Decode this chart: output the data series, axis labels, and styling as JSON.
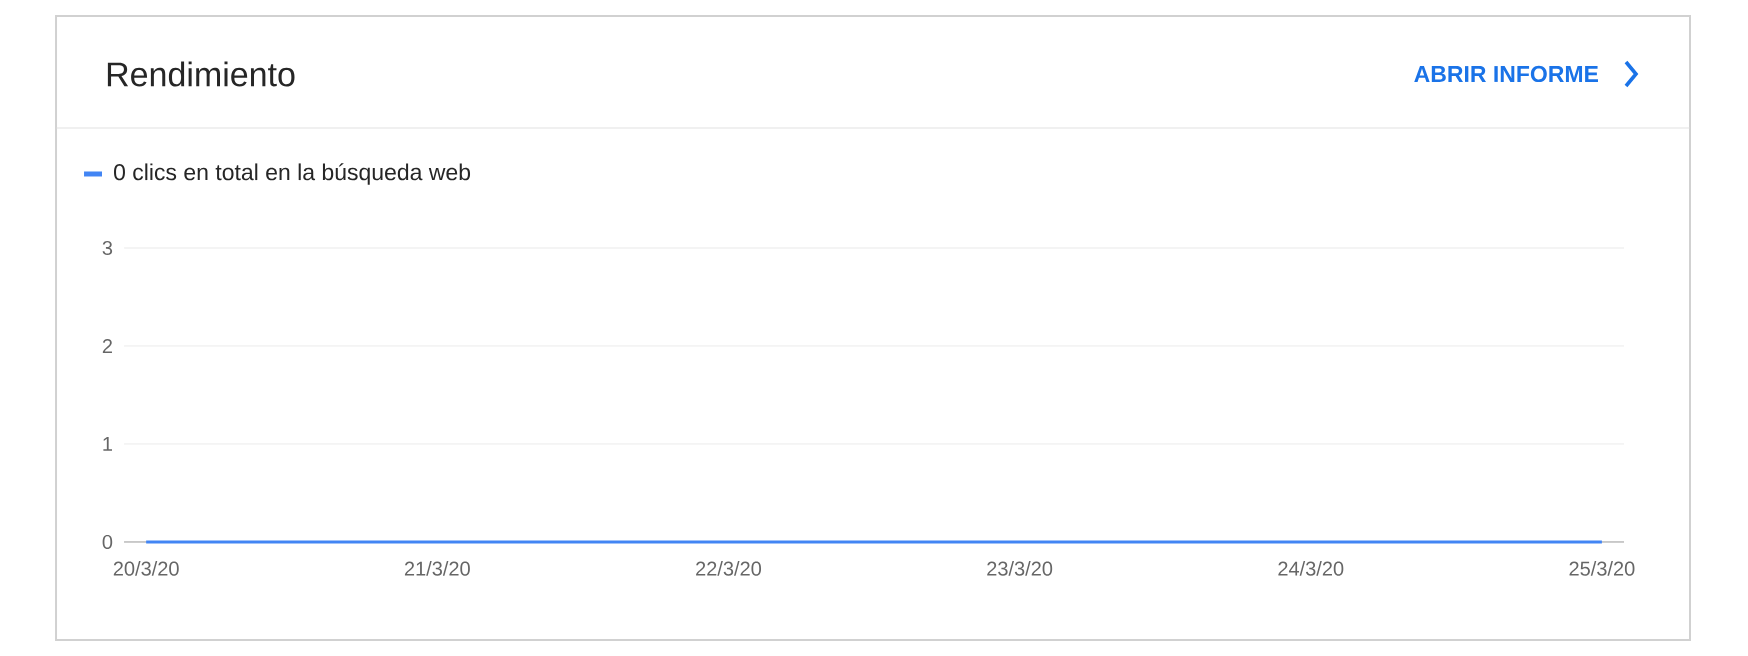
{
  "chart_data": {
    "type": "line",
    "title": "Rendimiento",
    "annotations": [
      "ABRIR INFORME"
    ],
    "categories": [
      "20/3/20",
      "21/3/20",
      "22/3/20",
      "23/3/20",
      "24/3/20",
      "25/3/20"
    ],
    "series": [
      {
        "name": "0 clics en total en la búsqueda web",
        "color": "#4285f4",
        "values": [
          0,
          0,
          0,
          0,
          0,
          0
        ]
      }
    ],
    "ylim": [
      0,
      3
    ],
    "yticks": [
      0,
      1,
      2,
      3
    ],
    "grid": "y",
    "legend": "top left",
    "marker": "none",
    "line_style": "solid"
  }
}
